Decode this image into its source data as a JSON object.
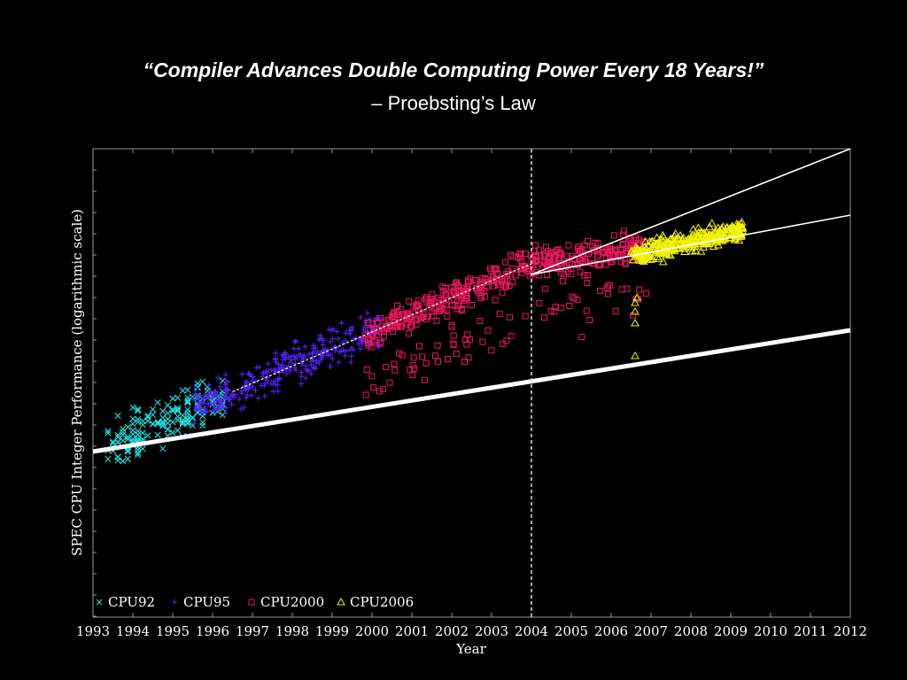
{
  "slide": {
    "title": "“Compiler Advances Double Computing Power Every 18 Years!”",
    "subtitle": "– Proebsting’s Law"
  },
  "chart_data": {
    "type": "scatter",
    "xlabel": "Year",
    "ylabel": "SPEC CPU Integer Performance (logarithmic scale)",
    "xlim": [
      1993,
      2012
    ],
    "x_ticks": [
      "1993",
      "1994",
      "1995",
      "1996",
      "1997",
      "1998",
      "1999",
      "2000",
      "2001",
      "2002",
      "2003",
      "2004",
      "2005",
      "2006",
      "2007",
      "2008",
      "2009",
      "2010",
      "2011",
      "2012"
    ],
    "y_scale": "log",
    "grid": false,
    "legend_position": "bottom-left",
    "reference_line_x": 2004,
    "colors": {
      "CPU92": "#22dddd",
      "CPU95": "#5522ee",
      "CPU2000": "#e8185f",
      "CPU2006": "#f2f20a",
      "trend": "#ffffff"
    },
    "series": [
      {
        "name": "CPU92",
        "marker": "x",
        "x_range": [
          1993.3,
          1996.3
        ]
      },
      {
        "name": "CPU95",
        "marker": "+",
        "x_range": [
          1995.5,
          2000.3
        ]
      },
      {
        "name": "CPU2000",
        "marker": "square",
        "x_range": [
          1999.8,
          2006.9
        ]
      },
      {
        "name": "CPU2006",
        "marker": "triangle",
        "x_range": [
          2006.5,
          2009.3
        ]
      }
    ]
  }
}
